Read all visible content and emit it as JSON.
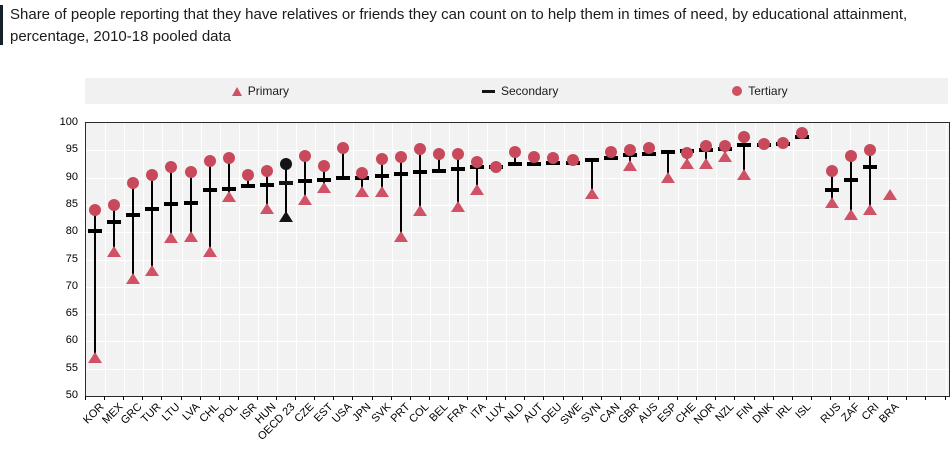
{
  "title": "Share of people reporting that they have relatives or friends they can count on to help them in times of need, by educational attainment, percentage, 2010-18 pooled data",
  "legend": {
    "primary": "Primary",
    "secondary": "Secondary",
    "tertiary": "Tertiary"
  },
  "colors": {
    "series_red": "#c8485c",
    "triangle_red": "#cf5266",
    "highlight_black": "#141414",
    "stick": "#000000",
    "plot_background": "#f2f2f2",
    "gridline": "#ffffff",
    "axis_text": "#000000",
    "title_text": "#1b1b1b",
    "accent_bar": "#17212b"
  },
  "y_axis": {
    "min": 50,
    "max": 100,
    "step": 5,
    "ticks": [
      100,
      95,
      90,
      85,
      80,
      75,
      70,
      65,
      60,
      55,
      50
    ]
  },
  "chart_data": {
    "type": "scatter",
    "subtype": "dot-range-plot",
    "unit": "percentage",
    "ylim": [
      50,
      100
    ],
    "grid": true,
    "legend_position": "top",
    "series_names": [
      "Primary",
      "Secondary",
      "Tertiary"
    ],
    "note": "Secondary values sorted ascending; OECD 23 shown in black; RUS/ZAF/CRI/BRA plotted as separate right-hand group",
    "countries": [
      {
        "code": "KOR",
        "primary": 57.0,
        "secondary": 80.2,
        "tertiary": 84.0,
        "group": "main",
        "highlight": false
      },
      {
        "code": "MEX",
        "primary": 76.5,
        "secondary": 81.8,
        "tertiary": 85.0,
        "group": "main",
        "highlight": false
      },
      {
        "code": "GRC",
        "primary": 71.5,
        "secondary": 83.2,
        "tertiary": 89.0,
        "group": "main",
        "highlight": false
      },
      {
        "code": "TUR",
        "primary": 73.0,
        "secondary": 84.2,
        "tertiary": 90.5,
        "group": "main",
        "highlight": false
      },
      {
        "code": "LTU",
        "primary": 79.0,
        "secondary": 85.2,
        "tertiary": 92.0,
        "group": "main",
        "highlight": false
      },
      {
        "code": "LVA",
        "primary": 79.3,
        "secondary": 85.3,
        "tertiary": 91.0,
        "group": "main",
        "highlight": false
      },
      {
        "code": "CHL",
        "primary": 76.5,
        "secondary": 87.7,
        "tertiary": 93.0,
        "group": "main",
        "highlight": false
      },
      {
        "code": "POL",
        "primary": 86.5,
        "secondary": 88.0,
        "tertiary": 93.5,
        "group": "main",
        "highlight": false
      },
      {
        "code": "ISR",
        "primary": null,
        "secondary": 88.4,
        "tertiary": 90.5,
        "group": "main",
        "highlight": false
      },
      {
        "code": "HUN",
        "primary": 84.3,
        "secondary": 88.7,
        "tertiary": 91.2,
        "group": "main",
        "highlight": false
      },
      {
        "code": "OECD 23",
        "primary": 82.8,
        "secondary": 89.1,
        "tertiary": 92.4,
        "group": "main",
        "highlight": true
      },
      {
        "code": "CZE",
        "primary": 86.0,
        "secondary": 89.3,
        "tertiary": 94.0,
        "group": "main",
        "highlight": false
      },
      {
        "code": "EST",
        "primary": 88.2,
        "secondary": 89.6,
        "tertiary": 92.2,
        "group": "main",
        "highlight": false
      },
      {
        "code": "USA",
        "primary": null,
        "secondary": 89.9,
        "tertiary": 95.5,
        "group": "main",
        "highlight": false
      },
      {
        "code": "JPN",
        "primary": 87.5,
        "secondary": 90.0,
        "tertiary": 90.8,
        "group": "main",
        "highlight": false
      },
      {
        "code": "SVK",
        "primary": 87.5,
        "secondary": 90.3,
        "tertiary": 93.4,
        "group": "main",
        "highlight": false
      },
      {
        "code": "PRT",
        "primary": 79.3,
        "secondary": 90.7,
        "tertiary": 93.8,
        "group": "main",
        "highlight": false
      },
      {
        "code": "COL",
        "primary": 84.0,
        "secondary": 91.0,
        "tertiary": 95.2,
        "group": "main",
        "highlight": false
      },
      {
        "code": "BEL",
        "primary": null,
        "secondary": 91.3,
        "tertiary": 94.4,
        "group": "main",
        "highlight": false
      },
      {
        "code": "FRA",
        "primary": 84.7,
        "secondary": 91.6,
        "tertiary": 94.4,
        "group": "main",
        "highlight": false
      },
      {
        "code": "ITA",
        "primary": 87.8,
        "secondary": 91.9,
        "tertiary": 92.9,
        "group": "main",
        "highlight": false
      },
      {
        "code": "LUX",
        "primary": null,
        "secondary": 92.0,
        "tertiary": 92.0,
        "group": "main",
        "highlight": false
      },
      {
        "code": "NLD",
        "primary": null,
        "secondary": 92.4,
        "tertiary": 94.6,
        "group": "main",
        "highlight": false
      },
      {
        "code": "AUT",
        "primary": null,
        "secondary": 92.5,
        "tertiary": 93.8,
        "group": "main",
        "highlight": false
      },
      {
        "code": "DEU",
        "primary": null,
        "secondary": 92.6,
        "tertiary": 93.5,
        "group": "main",
        "highlight": false
      },
      {
        "code": "SWE",
        "primary": null,
        "secondary": 92.7,
        "tertiary": 93.3,
        "group": "main",
        "highlight": false
      },
      {
        "code": "SVN",
        "primary": 87.1,
        "secondary": 93.3,
        "tertiary": null,
        "group": "main",
        "highlight": false
      },
      {
        "code": "CAN",
        "primary": null,
        "secondary": 93.5,
        "tertiary": 94.6,
        "group": "main",
        "highlight": false
      },
      {
        "code": "GBR",
        "primary": 92.2,
        "secondary": 94.2,
        "tertiary": 95.1,
        "group": "main",
        "highlight": false
      },
      {
        "code": "AUS",
        "primary": null,
        "secondary": 94.4,
        "tertiary": 95.5,
        "group": "main",
        "highlight": false
      },
      {
        "code": "ESP",
        "primary": 90.0,
        "secondary": 94.6,
        "tertiary": null,
        "group": "main",
        "highlight": false
      },
      {
        "code": "CHE",
        "primary": 92.6,
        "secondary": 94.9,
        "tertiary": 94.5,
        "group": "main",
        "highlight": false
      },
      {
        "code": "NOR",
        "primary": 92.5,
        "secondary": 95.0,
        "tertiary": 95.7,
        "group": "main",
        "highlight": false
      },
      {
        "code": "NZL",
        "primary": 93.8,
        "secondary": 95.3,
        "tertiary": 95.8,
        "group": "main",
        "highlight": false
      },
      {
        "code": "FIN",
        "primary": 90.5,
        "secondary": 95.9,
        "tertiary": 97.5,
        "group": "main",
        "highlight": false
      },
      {
        "code": "DNK",
        "primary": null,
        "secondary": 95.9,
        "tertiary": 96.1,
        "group": "main",
        "highlight": false
      },
      {
        "code": "IRL",
        "primary": null,
        "secondary": 96.1,
        "tertiary": 96.4,
        "group": "main",
        "highlight": false
      },
      {
        "code": "ISL",
        "primary": null,
        "secondary": 97.5,
        "tertiary": 98.1,
        "group": "main",
        "highlight": false
      },
      {
        "code": "RUS",
        "primary": 85.5,
        "secondary": 87.8,
        "tertiary": 91.3,
        "group": "partner",
        "highlight": false
      },
      {
        "code": "ZAF",
        "primary": 83.2,
        "secondary": 89.6,
        "tertiary": 94.0,
        "group": "partner",
        "highlight": false
      },
      {
        "code": "CRI",
        "primary": 84.2,
        "secondary": 91.9,
        "tertiary": 95.1,
        "group": "partner",
        "highlight": false
      },
      {
        "code": "BRA",
        "primary": 86.9,
        "secondary": null,
        "tertiary": null,
        "group": "partner",
        "highlight": false
      }
    ]
  }
}
